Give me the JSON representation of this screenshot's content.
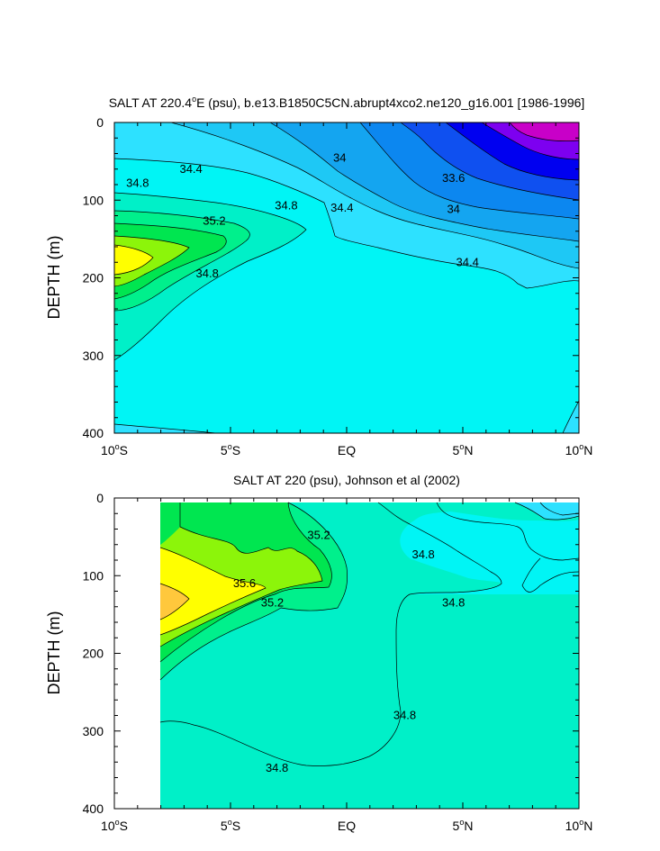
{
  "colors": {
    "c_le_33_2": "#c800c8",
    "c_33_2": "#7d00f0",
    "c_33_4": "#0000f0",
    "c_33_6": "#0f50f0",
    "c_33_8": "#0c87f0",
    "c_34_0": "#14a5f0",
    "c_34_2": "#1ec8f5",
    "c_34_4": "#2de1ff",
    "c_34_6": "#00f5f5",
    "c_34_8": "#00f0c8",
    "c_35_0": "#00f08c",
    "c_35_2": "#00e650",
    "c_35_4": "#8cf50a",
    "c_35_6": "#ffff00",
    "c_35_8": "#ffc83c",
    "line": "#000000",
    "frame": "#000000"
  },
  "chart_data": [
    {
      "type": "contour",
      "title_prefix": "SALT AT 220.4",
      "title_degree": "o",
      "title_suffix": "E (psu), b.e13.B1850C5CN.abrupt4xco2.ne120_g16.001 [1986-1996]",
      "ylabel": "DEPTH (m)",
      "x_range": [
        -10,
        10
      ],
      "y_range": [
        0,
        400
      ],
      "y_inverted": true,
      "y_ticks": [
        0,
        100,
        200,
        300,
        400
      ],
      "x_ticks": [
        {
          "pre": "10",
          "deg": "o",
          "post": "S"
        },
        {
          "pre": "5",
          "deg": "o",
          "post": "S"
        },
        {
          "pre": "EQ",
          "deg": "",
          "post": ""
        },
        {
          "pre": "5",
          "deg": "o",
          "post": "N"
        },
        {
          "pre": "10",
          "deg": "o",
          "post": "N"
        }
      ],
      "contour_interval": 0.2,
      "contour_labels": [
        {
          "text": "34",
          "x": -0.3,
          "y": 46
        },
        {
          "text": "34.4",
          "x": -6.7,
          "y": 60
        },
        {
          "text": "33.6",
          "x": 4.6,
          "y": 72
        },
        {
          "text": "34.8",
          "x": -9.0,
          "y": 78
        },
        {
          "text": "34.8",
          "x": -2.6,
          "y": 107
        },
        {
          "text": "34.4",
          "x": -0.2,
          "y": 110
        },
        {
          "text": "34",
          "x": 4.6,
          "y": 112
        },
        {
          "text": "35.2",
          "x": -5.7,
          "y": 127
        },
        {
          "text": "34.4",
          "x": 5.2,
          "y": 180
        },
        {
          "text": "34.8",
          "x": -6.0,
          "y": 195
        }
      ]
    },
    {
      "type": "contour",
      "title_prefix": "SALT AT 220 (psu), Johnson et al (2002)",
      "title_degree": "",
      "title_suffix": "",
      "ylabel": "DEPTH (m)",
      "x_range": [
        -10,
        10
      ],
      "y_range": [
        0,
        400
      ],
      "y_inverted": true,
      "y_ticks": [
        0,
        100,
        200,
        300,
        400
      ],
      "x_ticks": [
        {
          "pre": "10",
          "deg": "o",
          "post": "S"
        },
        {
          "pre": "5",
          "deg": "o",
          "post": "S"
        },
        {
          "pre": "EQ",
          "deg": "",
          "post": ""
        },
        {
          "pre": "5",
          "deg": "o",
          "post": "N"
        },
        {
          "pre": "10",
          "deg": "o",
          "post": "N"
        }
      ],
      "data_x_start": -8,
      "contour_interval": 0.2,
      "contour_labels": [
        {
          "text": "35.2",
          "x": -1.2,
          "y": 48
        },
        {
          "text": "34.8",
          "x": 3.3,
          "y": 73
        },
        {
          "text": "35.6",
          "x": -4.4,
          "y": 110
        },
        {
          "text": "34.8",
          "x": 4.6,
          "y": 135
        },
        {
          "text": "35.2",
          "x": -3.2,
          "y": 135
        },
        {
          "text": "34.8",
          "x": 2.5,
          "y": 280
        },
        {
          "text": "34.8",
          "x": -3.0,
          "y": 348
        }
      ]
    }
  ]
}
